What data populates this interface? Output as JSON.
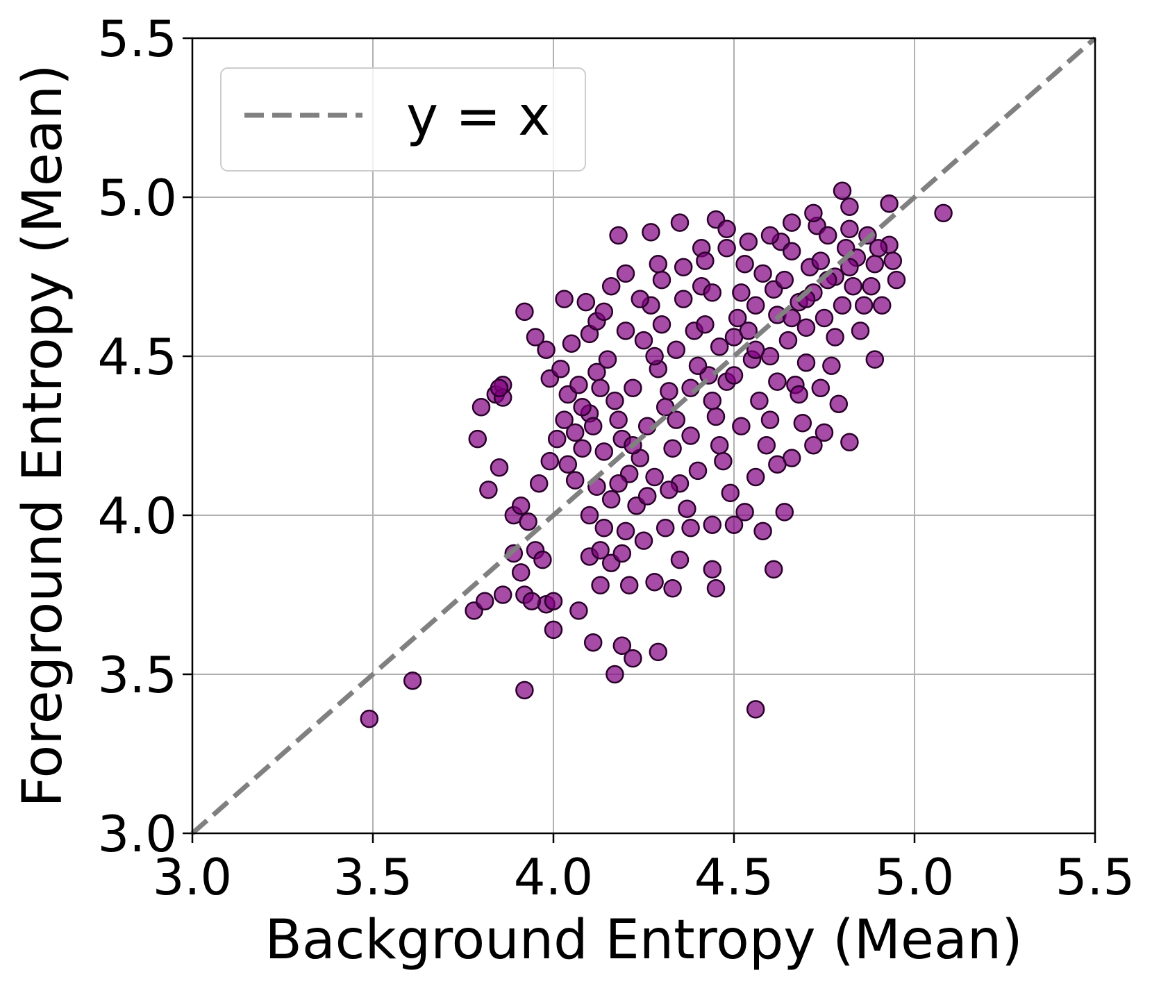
{
  "chart_data": {
    "type": "scatter",
    "xlabel": "Background Entropy (Mean)",
    "ylabel": "Foreground Entropy (Mean)",
    "xlim": [
      3.0,
      5.5
    ],
    "ylim": [
      3.0,
      5.5
    ],
    "x_ticks": [
      "3.0",
      "3.5",
      "4.0",
      "4.5",
      "5.0",
      "5.5"
    ],
    "y_ticks": [
      "3.0",
      "3.5",
      "4.0",
      "4.5",
      "5.0",
      "5.5"
    ],
    "grid": true,
    "legend": {
      "placement": "top-left",
      "entries": [
        {
          "label": "y = x",
          "style": "dashed",
          "color": "#808080"
        }
      ]
    },
    "reference_line": {
      "label": "y = x",
      "from": [
        3.0,
        3.0
      ],
      "to": [
        5.5,
        5.5
      ],
      "color": "#808080",
      "style": "dashed"
    },
    "series": [
      {
        "marker_color": "#800080",
        "marker_edge": "#2a002a",
        "points": [
          [
            3.49,
            3.36
          ],
          [
            3.61,
            3.48
          ],
          [
            3.92,
            3.45
          ],
          [
            4.56,
            3.39
          ],
          [
            4.17,
            3.5
          ],
          [
            4.11,
            3.6
          ],
          [
            4.22,
            3.55
          ],
          [
            4.19,
            3.59
          ],
          [
            4.29,
            3.57
          ],
          [
            4.0,
            3.64
          ],
          [
            3.98,
            3.72
          ],
          [
            4.07,
            3.7
          ],
          [
            3.78,
            3.7
          ],
          [
            3.81,
            3.73
          ],
          [
            3.86,
            3.75
          ],
          [
            3.92,
            3.75
          ],
          [
            3.94,
            3.73
          ],
          [
            4.0,
            3.73
          ],
          [
            4.13,
            3.78
          ],
          [
            4.21,
            3.78
          ],
          [
            4.28,
            3.79
          ],
          [
            4.33,
            3.77
          ],
          [
            4.45,
            3.77
          ],
          [
            4.44,
            3.83
          ],
          [
            4.61,
            3.83
          ],
          [
            4.35,
            3.86
          ],
          [
            3.79,
            4.24
          ],
          [
            3.8,
            4.34
          ],
          [
            3.82,
            4.08
          ],
          [
            3.85,
            4.15
          ],
          [
            3.84,
            4.38
          ],
          [
            3.86,
            4.41
          ],
          [
            3.86,
            4.37
          ],
          [
            3.85,
            4.4
          ],
          [
            3.92,
            4.64
          ],
          [
            3.95,
            4.56
          ],
          [
            3.98,
            4.52
          ],
          [
            4.03,
            4.68
          ],
          [
            4.05,
            4.54
          ],
          [
            4.09,
            4.67
          ],
          [
            4.1,
            4.57
          ],
          [
            4.12,
            4.61
          ],
          [
            4.14,
            4.64
          ],
          [
            4.16,
            4.72
          ],
          [
            4.2,
            4.76
          ],
          [
            4.18,
            4.88
          ],
          [
            4.27,
            4.89
          ],
          [
            4.35,
            4.92
          ],
          [
            4.41,
            4.84
          ],
          [
            4.45,
            4.93
          ],
          [
            4.48,
            4.9
          ],
          [
            4.29,
            4.79
          ],
          [
            4.8,
            5.02
          ],
          [
            4.82,
            4.97
          ],
          [
            4.93,
            4.98
          ],
          [
            5.08,
            4.95
          ],
          [
            4.95,
            4.74
          ],
          [
            4.89,
            4.49
          ],
          [
            4.82,
            4.23
          ],
          [
            4.75,
            4.26
          ],
          [
            4.72,
            4.22
          ],
          [
            4.66,
            4.18
          ],
          [
            4.62,
            4.16
          ],
          [
            4.64,
            4.01
          ],
          [
            4.58,
            3.95
          ],
          [
            4.53,
            4.01
          ],
          [
            3.89,
            4.0
          ],
          [
            3.91,
            4.03
          ],
          [
            3.93,
            3.98
          ],
          [
            3.95,
            3.89
          ],
          [
            3.97,
            3.86
          ],
          [
            3.89,
            3.88
          ],
          [
            3.91,
            3.82
          ],
          [
            3.96,
            4.1
          ],
          [
            3.99,
            4.17
          ],
          [
            4.01,
            4.24
          ],
          [
            4.03,
            4.3
          ],
          [
            3.99,
            4.43
          ],
          [
            4.02,
            4.46
          ],
          [
            4.04,
            4.38
          ],
          [
            4.07,
            4.41
          ],
          [
            4.1,
            3.87
          ],
          [
            4.13,
            3.89
          ],
          [
            4.16,
            3.85
          ],
          [
            4.19,
            3.88
          ],
          [
            4.2,
            3.95
          ],
          [
            4.25,
            3.92
          ],
          [
            4.31,
            3.96
          ],
          [
            4.38,
            3.96
          ],
          [
            4.44,
            3.97
          ],
          [
            4.5,
            3.97
          ],
          [
            4.06,
            4.11
          ],
          [
            4.08,
            4.21
          ],
          [
            4.1,
            4.32
          ],
          [
            4.12,
            4.45
          ],
          [
            4.15,
            4.49
          ],
          [
            4.17,
            4.36
          ],
          [
            4.19,
            4.24
          ],
          [
            4.21,
            4.13
          ],
          [
            4.23,
            4.03
          ],
          [
            4.25,
            4.55
          ],
          [
            4.27,
            4.66
          ],
          [
            4.29,
            4.46
          ],
          [
            4.31,
            4.34
          ],
          [
            4.33,
            4.21
          ],
          [
            4.35,
            4.1
          ],
          [
            4.37,
            4.02
          ],
          [
            4.39,
            4.58
          ],
          [
            4.41,
            4.72
          ],
          [
            4.43,
            4.44
          ],
          [
            4.45,
            4.31
          ],
          [
            4.47,
            4.17
          ],
          [
            4.49,
            4.07
          ],
          [
            4.51,
            4.62
          ],
          [
            4.53,
            4.79
          ],
          [
            4.55,
            4.49
          ],
          [
            4.57,
            4.36
          ],
          [
            4.59,
            4.22
          ],
          [
            4.61,
            4.71
          ],
          [
            4.63,
            4.86
          ],
          [
            4.65,
            4.55
          ],
          [
            4.67,
            4.41
          ],
          [
            4.69,
            4.29
          ],
          [
            4.71,
            4.78
          ],
          [
            4.73,
            4.91
          ],
          [
            4.75,
            4.62
          ],
          [
            4.77,
            4.47
          ],
          [
            4.79,
            4.35
          ],
          [
            4.81,
            4.84
          ],
          [
            4.83,
            4.72
          ],
          [
            4.85,
            4.58
          ],
          [
            4.87,
            4.88
          ],
          [
            4.89,
            4.79
          ],
          [
            4.91,
            4.66
          ],
          [
            4.93,
            4.85
          ],
          [
            4.94,
            4.8
          ],
          [
            4.14,
            4.2
          ],
          [
            4.16,
            4.05
          ],
          [
            4.18,
            4.3
          ],
          [
            4.22,
            4.4
          ],
          [
            4.24,
            4.18
          ],
          [
            4.26,
            4.28
          ],
          [
            4.28,
            4.5
          ],
          [
            4.3,
            4.6
          ],
          [
            4.32,
            4.39
          ],
          [
            4.34,
            4.52
          ],
          [
            4.36,
            4.68
          ],
          [
            4.38,
            4.25
          ],
          [
            4.4,
            4.47
          ],
          [
            4.42,
            4.6
          ],
          [
            4.44,
            4.7
          ],
          [
            4.46,
            4.53
          ],
          [
            4.48,
            4.42
          ],
          [
            4.5,
            4.56
          ],
          [
            4.52,
            4.7
          ],
          [
            4.54,
            4.58
          ],
          [
            4.56,
            4.66
          ],
          [
            4.58,
            4.76
          ],
          [
            4.6,
            4.5
          ],
          [
            4.62,
            4.63
          ],
          [
            4.64,
            4.74
          ],
          [
            4.66,
            4.83
          ],
          [
            4.68,
            4.67
          ],
          [
            4.7,
            4.59
          ],
          [
            4.72,
            4.7
          ],
          [
            4.74,
            4.8
          ],
          [
            4.76,
            4.88
          ],
          [
            4.78,
            4.75
          ],
          [
            4.8,
            4.66
          ],
          [
            4.82,
            4.9
          ],
          [
            4.84,
            4.81
          ],
          [
            4.1,
            4.0
          ],
          [
            4.12,
            4.09
          ],
          [
            4.14,
            3.96
          ],
          [
            4.26,
            4.06
          ],
          [
            4.32,
            4.08
          ],
          [
            4.4,
            4.14
          ],
          [
            4.46,
            4.22
          ],
          [
            4.52,
            4.28
          ],
          [
            4.56,
            4.12
          ],
          [
            4.6,
            4.3
          ],
          [
            4.68,
            4.38
          ],
          [
            4.7,
            4.48
          ],
          [
            4.74,
            4.4
          ],
          [
            4.78,
            4.56
          ],
          [
            4.86,
            4.66
          ],
          [
            4.2,
            4.58
          ],
          [
            4.24,
            4.68
          ],
          [
            4.3,
            4.74
          ],
          [
            4.36,
            4.78
          ],
          [
            4.42,
            4.8
          ],
          [
            4.48,
            4.84
          ],
          [
            4.54,
            4.86
          ],
          [
            4.6,
            4.88
          ],
          [
            4.66,
            4.92
          ],
          [
            4.72,
            4.95
          ],
          [
            4.04,
            4.16
          ],
          [
            4.06,
            4.26
          ],
          [
            4.08,
            4.34
          ],
          [
            4.11,
            4.28
          ],
          [
            4.13,
            4.4
          ],
          [
            4.18,
            4.1
          ],
          [
            4.22,
            4.22
          ],
          [
            4.28,
            4.12
          ],
          [
            4.34,
            4.3
          ],
          [
            4.38,
            4.4
          ],
          [
            4.44,
            4.36
          ],
          [
            4.5,
            4.44
          ],
          [
            4.56,
            4.52
          ],
          [
            4.62,
            4.42
          ],
          [
            4.66,
            4.62
          ],
          [
            4.7,
            4.68
          ],
          [
            4.76,
            4.74
          ],
          [
            4.82,
            4.78
          ],
          [
            4.88,
            4.72
          ],
          [
            4.9,
            4.84
          ]
        ]
      }
    ]
  }
}
